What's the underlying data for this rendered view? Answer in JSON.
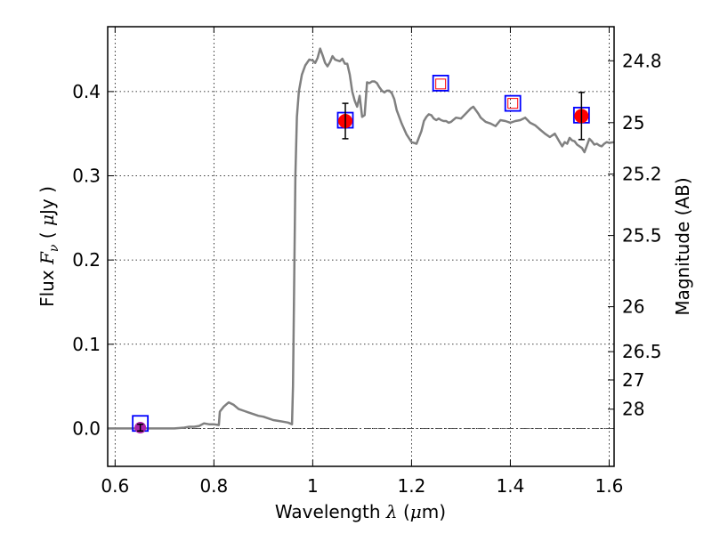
{
  "chart_data": {
    "type": "scatter",
    "title": "",
    "xlabel": "Wavelength  λ (μm)",
    "xlabel_parts": {
      "pre": "Wavelength  ",
      "sym": "λ",
      "post": " (",
      "mu": "μ",
      "unit": "m)"
    },
    "ylabel": "Flux  Fν  ( μJy )",
    "ylabel_parts": {
      "pre": "Flux  ",
      "sym": "F",
      "sub": "ν",
      "mid": "  ( ",
      "mu": "μ",
      "unit": "Jy )"
    },
    "ylabel_right": "Magnitude (AB)",
    "xlim": [
      0.585,
      1.61
    ],
    "ylim": [
      -0.045,
      0.477
    ],
    "grid": true,
    "x_ticks": [
      0.6,
      0.8,
      1.0,
      1.2,
      1.4,
      1.6
    ],
    "x_tick_labels": [
      "0.6",
      "0.8",
      "1",
      "1.2",
      "1.4",
      "1.6"
    ],
    "y_ticks": [
      0.0,
      0.1,
      0.2,
      0.3,
      0.4
    ],
    "y_tick_labels": [
      "0.0",
      "0.1",
      "0.2",
      "0.3",
      "0.4"
    ],
    "right_ticks": [
      {
        "mag": 24.8,
        "label": "24.8"
      },
      {
        "mag": 25.0,
        "label": "25"
      },
      {
        "mag": 25.2,
        "label": "25.2"
      },
      {
        "mag": 25.5,
        "label": "25.5"
      },
      {
        "mag": 26.0,
        "label": "26"
      },
      {
        "mag": 26.5,
        "label": "26.5"
      },
      {
        "mag": 27.0,
        "label": "27"
      },
      {
        "mag": 28.0,
        "label": "28"
      }
    ],
    "series": [
      {
        "kind": "line",
        "color": "#808080",
        "x": [
          0.585,
          0.6,
          0.62,
          0.64,
          0.66,
          0.68,
          0.7,
          0.72,
          0.74,
          0.75,
          0.76,
          0.77,
          0.78,
          0.79,
          0.8,
          0.81,
          0.812,
          0.82,
          0.83,
          0.84,
          0.85,
          0.86,
          0.87,
          0.88,
          0.89,
          0.9,
          0.91,
          0.92,
          0.93,
          0.94,
          0.95,
          0.958,
          0.96,
          0.962,
          0.965,
          0.968,
          0.972,
          0.978,
          0.985,
          0.993,
          1.0,
          1.005,
          1.01,
          1.015,
          1.02,
          1.025,
          1.03,
          1.035,
          1.04,
          1.045,
          1.05,
          1.055,
          1.06,
          1.065,
          1.07,
          1.075,
          1.08,
          1.085,
          1.09,
          1.095,
          1.1,
          1.105,
          1.11,
          1.115,
          1.12,
          1.125,
          1.13,
          1.135,
          1.14,
          1.145,
          1.15,
          1.155,
          1.16,
          1.165,
          1.17,
          1.18,
          1.19,
          1.2,
          1.21,
          1.22,
          1.225,
          1.23,
          1.235,
          1.24,
          1.245,
          1.25,
          1.255,
          1.26,
          1.265,
          1.27,
          1.275,
          1.28,
          1.29,
          1.3,
          1.31,
          1.32,
          1.325,
          1.33,
          1.335,
          1.34,
          1.35,
          1.36,
          1.37,
          1.38,
          1.39,
          1.4,
          1.41,
          1.42,
          1.43,
          1.44,
          1.45,
          1.46,
          1.47,
          1.48,
          1.49,
          1.5,
          1.505,
          1.51,
          1.515,
          1.52,
          1.525,
          1.53,
          1.535,
          1.54,
          1.545,
          1.55,
          1.555,
          1.56,
          1.565,
          1.57,
          1.575,
          1.58,
          1.585,
          1.59,
          1.595,
          1.6,
          1.61
        ],
        "y": [
          0.0,
          0.0,
          0.0,
          0.0,
          0.0,
          0.0,
          0.0,
          0.0,
          0.001,
          0.002,
          0.002,
          0.003,
          0.006,
          0.005,
          0.005,
          0.004,
          0.02,
          0.026,
          0.031,
          0.028,
          0.023,
          0.021,
          0.019,
          0.017,
          0.015,
          0.014,
          0.012,
          0.01,
          0.009,
          0.008,
          0.007,
          0.005,
          0.05,
          0.15,
          0.3,
          0.37,
          0.4,
          0.42,
          0.431,
          0.438,
          0.437,
          0.434,
          0.44,
          0.451,
          0.443,
          0.434,
          0.43,
          0.435,
          0.442,
          0.438,
          0.437,
          0.436,
          0.439,
          0.433,
          0.433,
          0.42,
          0.4,
          0.389,
          0.382,
          0.395,
          0.37,
          0.372,
          0.411,
          0.41,
          0.412,
          0.412,
          0.41,
          0.405,
          0.401,
          0.399,
          0.401,
          0.401,
          0.398,
          0.391,
          0.378,
          0.362,
          0.349,
          0.34,
          0.338,
          0.353,
          0.365,
          0.37,
          0.373,
          0.372,
          0.368,
          0.366,
          0.368,
          0.366,
          0.365,
          0.365,
          0.363,
          0.364,
          0.369,
          0.368,
          0.374,
          0.38,
          0.382,
          0.378,
          0.374,
          0.369,
          0.364,
          0.362,
          0.359,
          0.366,
          0.365,
          0.363,
          0.365,
          0.366,
          0.369,
          0.363,
          0.36,
          0.355,
          0.35,
          0.346,
          0.35,
          0.34,
          0.335,
          0.34,
          0.338,
          0.345,
          0.342,
          0.341,
          0.337,
          0.335,
          0.333,
          0.328,
          0.336,
          0.344,
          0.341,
          0.337,
          0.338,
          0.336,
          0.335,
          0.338,
          0.34,
          0.339,
          0.34
        ]
      },
      {
        "kind": "model_points",
        "name": "",
        "marker": "open-square",
        "color": "#0000ff",
        "x": [
          0.651,
          1.066,
          1.259,
          1.405,
          1.544
        ],
        "y": [
          0.006,
          0.366,
          0.41,
          0.386,
          0.372
        ]
      },
      {
        "kind": "synthetic_points",
        "name": "",
        "marker": "small-open-square",
        "color": "#ff0000",
        "x": [
          1.259,
          1.405
        ],
        "y": [
          0.409,
          0.386
        ]
      },
      {
        "kind": "observed",
        "name": "",
        "marker": "filled-circle",
        "color": "#ff0000",
        "x": [
          1.066,
          1.544
        ],
        "y": [
          0.365,
          0.371
        ],
        "yerr": [
          0.021,
          0.028
        ]
      },
      {
        "kind": "upper_limit",
        "name": "",
        "marker": "filled-circle",
        "color": "#aa22aa",
        "x": [
          0.651
        ],
        "y": [
          0.001
        ],
        "yerr": [
          0.004
        ]
      }
    ],
    "zero_line": {
      "y": 0.0,
      "style": "dashdot"
    }
  }
}
